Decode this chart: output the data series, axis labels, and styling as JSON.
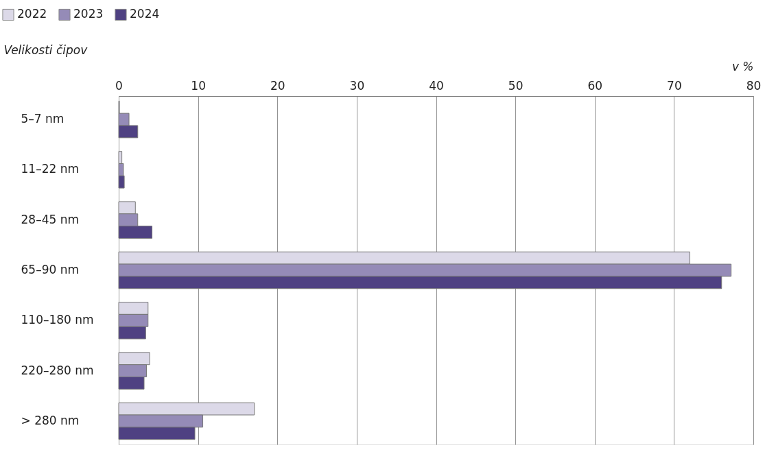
{
  "chart_data": {
    "type": "bar",
    "orientation": "horizontal",
    "xlabel": "v %",
    "ylabel": "Velikosti čipov",
    "categories": [
      "5–7 nm",
      "11–22 nm",
      "28–45 nm",
      "65–90 nm",
      "110–180 nm",
      "220–280 nm",
      "> 280 nm"
    ],
    "series": [
      {
        "name": "2022",
        "color": "#dcd9e8",
        "values": [
          0.1,
          0.4,
          2.1,
          72.0,
          3.7,
          3.9,
          17.1
        ]
      },
      {
        "name": "2023",
        "color": "#958bb7",
        "values": [
          1.3,
          0.6,
          2.4,
          77.2,
          3.7,
          3.5,
          10.6
        ]
      },
      {
        "name": "2024",
        "color": "#4f4182",
        "values": [
          2.4,
          0.7,
          4.2,
          76.0,
          3.4,
          3.2,
          9.6
        ]
      }
    ],
    "xlim": [
      0,
      80
    ],
    "xticks": [
      0,
      10,
      20,
      30,
      40,
      50,
      60,
      70,
      80
    ],
    "grid": "x",
    "legend": "top left"
  }
}
